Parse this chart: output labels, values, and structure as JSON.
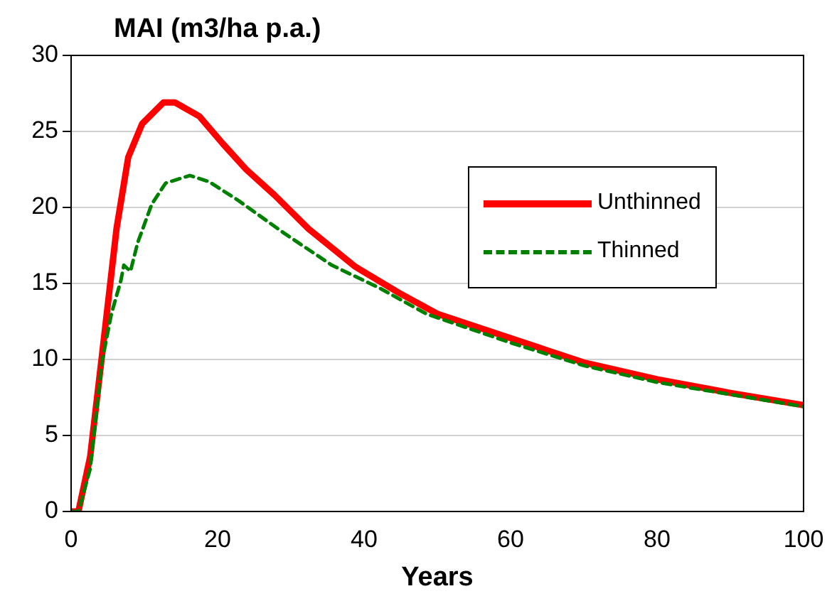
{
  "chart_data": {
    "type": "line",
    "title": "MAI (m3/ha p.a.)",
    "xlabel": "Years",
    "xlim": [
      0,
      100
    ],
    "xticks": [
      0,
      20,
      40,
      60,
      80,
      100
    ],
    "ylim": [
      0,
      30
    ],
    "yticks": [
      0,
      5,
      10,
      15,
      20,
      25,
      30
    ],
    "grid": "y",
    "legend": "right",
    "marker": "none",
    "series": [
      {
        "name": "Unthinned",
        "color": "#ff0000",
        "line_style": "solid",
        "x": [
          0,
          1,
          2.6,
          4.2,
          6.2,
          7.8,
          9.7,
          12.6,
          14.2,
          17.5,
          20.7,
          23.9,
          27.8,
          32.4,
          38.8,
          44.7,
          50,
          60,
          70,
          80,
          90,
          100
        ],
        "values": [
          0,
          0,
          3.6,
          10.2,
          18.6,
          23.3,
          25.5,
          26.9,
          26.9,
          26,
          24.2,
          22.5,
          20.8,
          18.6,
          16.1,
          14.4,
          13,
          11.4,
          9.8,
          8.7,
          7.8,
          7
        ]
      },
      {
        "name": "Thinned",
        "color": "#008000",
        "line_style": "dashed",
        "x": [
          0,
          1,
          2.6,
          4.2,
          5.5,
          6.8,
          7.2,
          8.1,
          9.1,
          11,
          12.9,
          16.2,
          18.8,
          22.7,
          29.1,
          35.6,
          42.1,
          48.5,
          60,
          70,
          80,
          90,
          100
        ],
        "values": [
          0,
          0,
          2.8,
          9.8,
          13,
          15.2,
          16.2,
          15.8,
          17.7,
          20.2,
          21.6,
          22.1,
          21.7,
          20.5,
          18.3,
          16.2,
          14.7,
          13,
          11.1,
          9.6,
          8.5,
          7.7,
          6.9
        ]
      }
    ]
  }
}
